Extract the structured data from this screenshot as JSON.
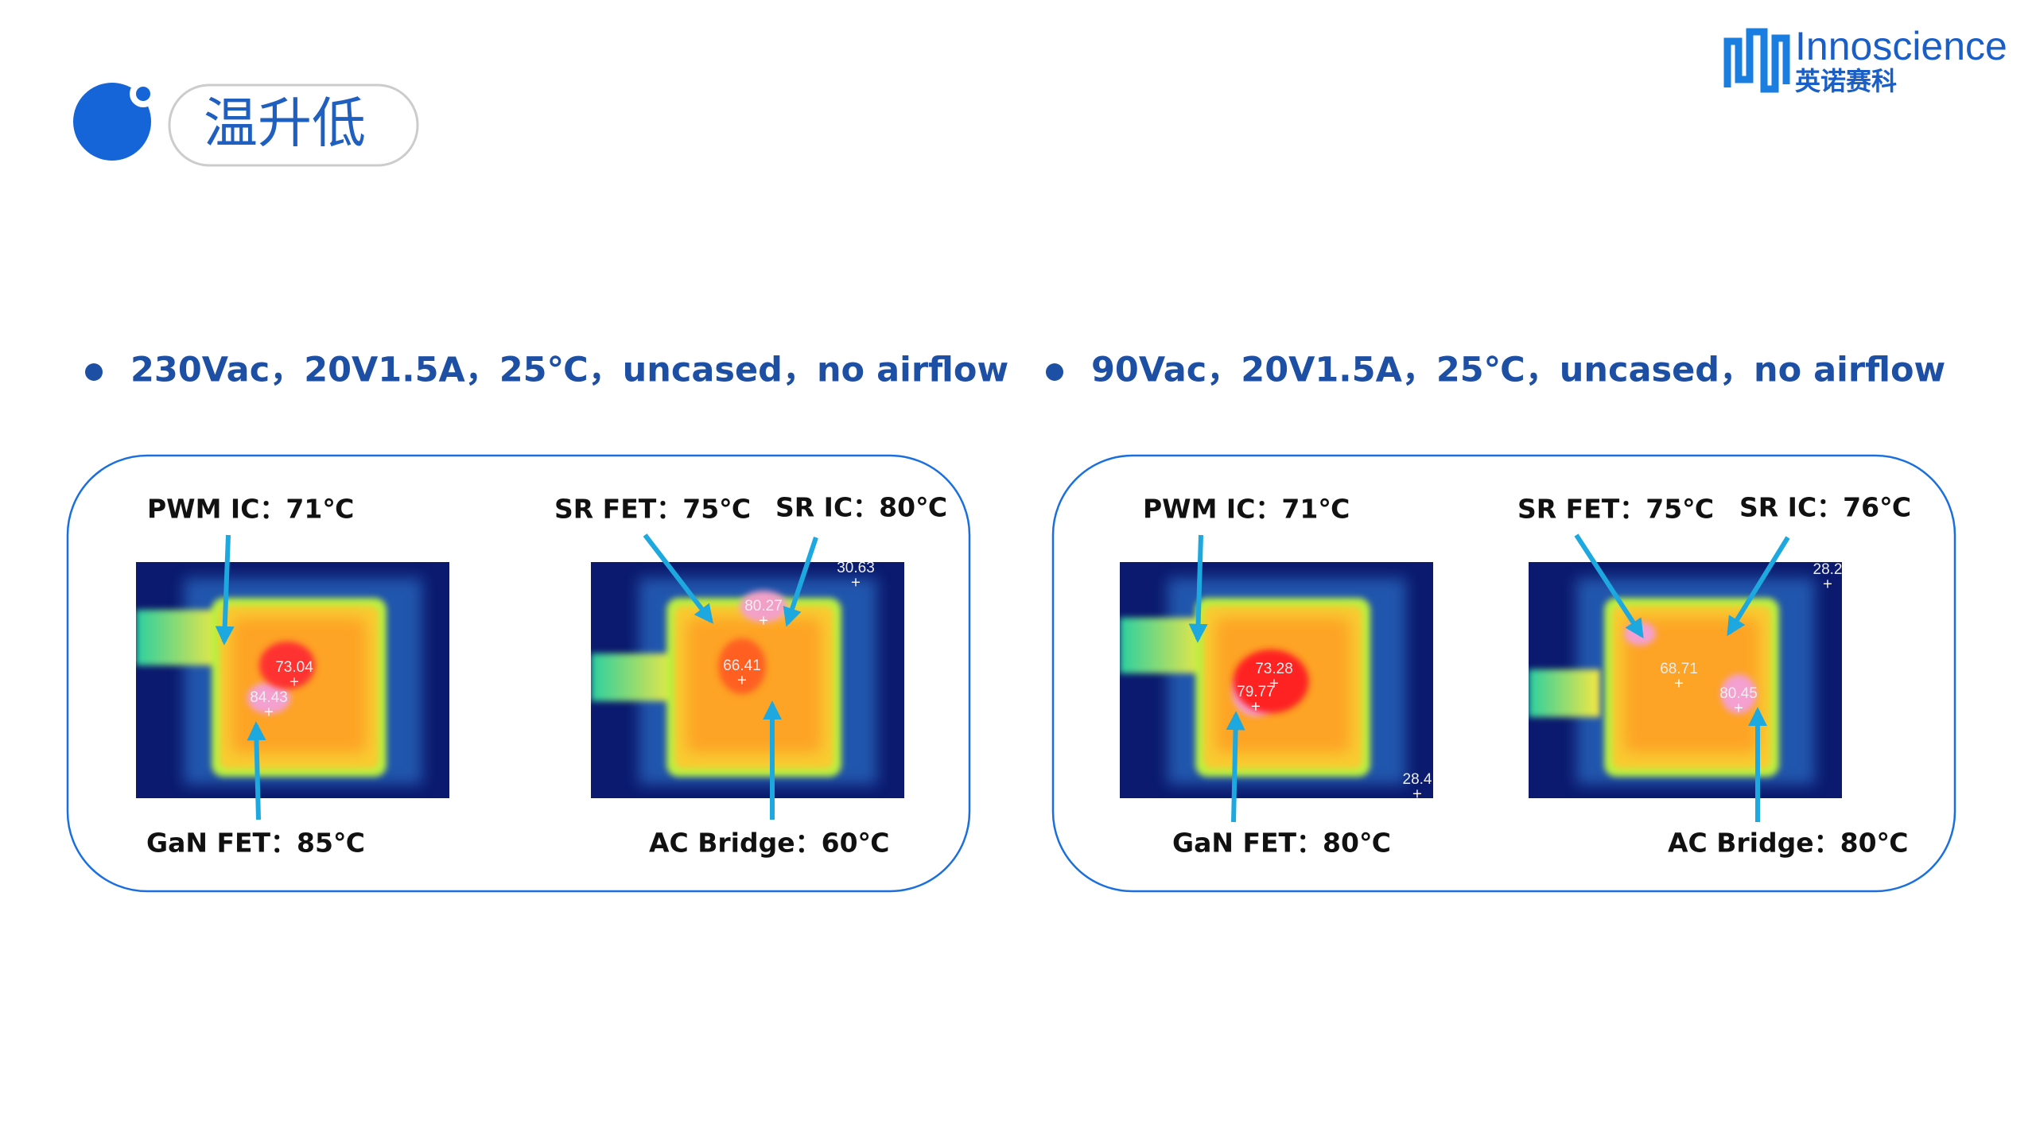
{
  "header": {
    "title": "温升低",
    "logo": {
      "name": "Innoscience",
      "name_cn": "英诺赛科"
    }
  },
  "panels": [
    {
      "condition": "230Vac，20V1.5A，25℃，uncased，no airflow",
      "labels": [
        "PWM IC：71℃",
        "SR FET：75℃",
        "SR IC：80℃",
        "GaN FET：85℃",
        "AC Bridge：60℃"
      ],
      "images": [
        {
          "readings": [
            "73.04",
            "84.43"
          ]
        },
        {
          "readings": [
            "30.63",
            "80.27",
            "66.41"
          ]
        }
      ]
    },
    {
      "condition": "90Vac，20V1.5A，25℃，uncased，no airflow",
      "labels": [
        "PWM IC：71℃",
        "SR FET：75℃",
        "SR IC：76℃",
        "GaN FET：80℃",
        "AC Bridge：80℃"
      ],
      "images": [
        {
          "readings": [
            "73.28",
            "79.77",
            "28.4"
          ]
        },
        {
          "readings": [
            "28.2",
            "68.71",
            "80.45"
          ]
        }
      ]
    }
  ]
}
